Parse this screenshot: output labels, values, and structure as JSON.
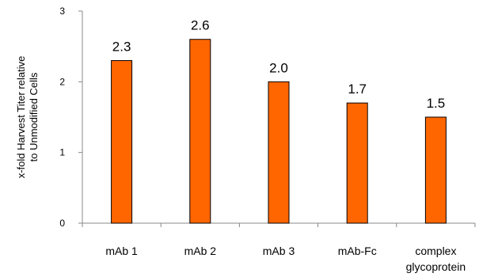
{
  "chart_data": {
    "type": "bar",
    "title": "",
    "xlabel": "",
    "ylabel_lines": [
      "x-fold Harvest Titer  relative",
      "to Unmodified Cells"
    ],
    "categories": [
      [
        "mAb 1"
      ],
      [
        "mAb 2"
      ],
      [
        "mAb 3"
      ],
      [
        "mAb-Fc"
      ],
      [
        "complex",
        "glycoprotein"
      ]
    ],
    "values": [
      2.3,
      2.6,
      2.0,
      1.7,
      1.5
    ],
    "value_labels": [
      "2.3",
      "2.6",
      "2.0",
      "1.7",
      "1.5"
    ],
    "ylim": [
      0,
      3
    ],
    "yticks": [
      0,
      1,
      2,
      3
    ],
    "grid": false,
    "legend": "none",
    "colors": {
      "bar_fill": "#FF6600",
      "bar_stroke": "#000000",
      "axis": "#888888"
    }
  }
}
